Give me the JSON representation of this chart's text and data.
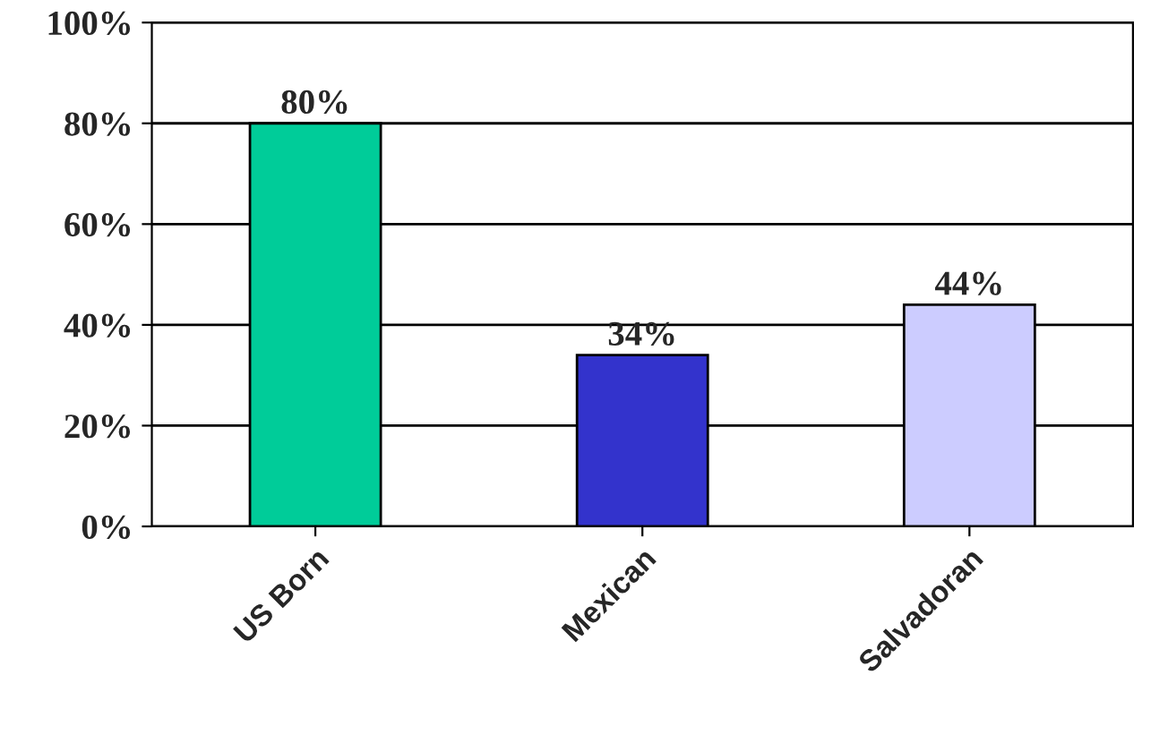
{
  "chart_data": {
    "type": "bar",
    "categories": [
      "US Born",
      "Mexican",
      "Salvadoran"
    ],
    "values": [
      80,
      34,
      44
    ],
    "colors": [
      "#00cc99",
      "#3333cc",
      "#ccccff"
    ],
    "value_labels": [
      "80%",
      "34%",
      "44%"
    ],
    "ylim": [
      0,
      100
    ],
    "yticks": [
      {
        "value": 0,
        "label": "0%"
      },
      {
        "value": 20,
        "label": "20%"
      },
      {
        "value": 40,
        "label": "40%"
      },
      {
        "value": 60,
        "label": "60%"
      },
      {
        "value": 80,
        "label": "80%"
      },
      {
        "value": 100,
        "label": "100%"
      }
    ],
    "grid": "y"
  }
}
